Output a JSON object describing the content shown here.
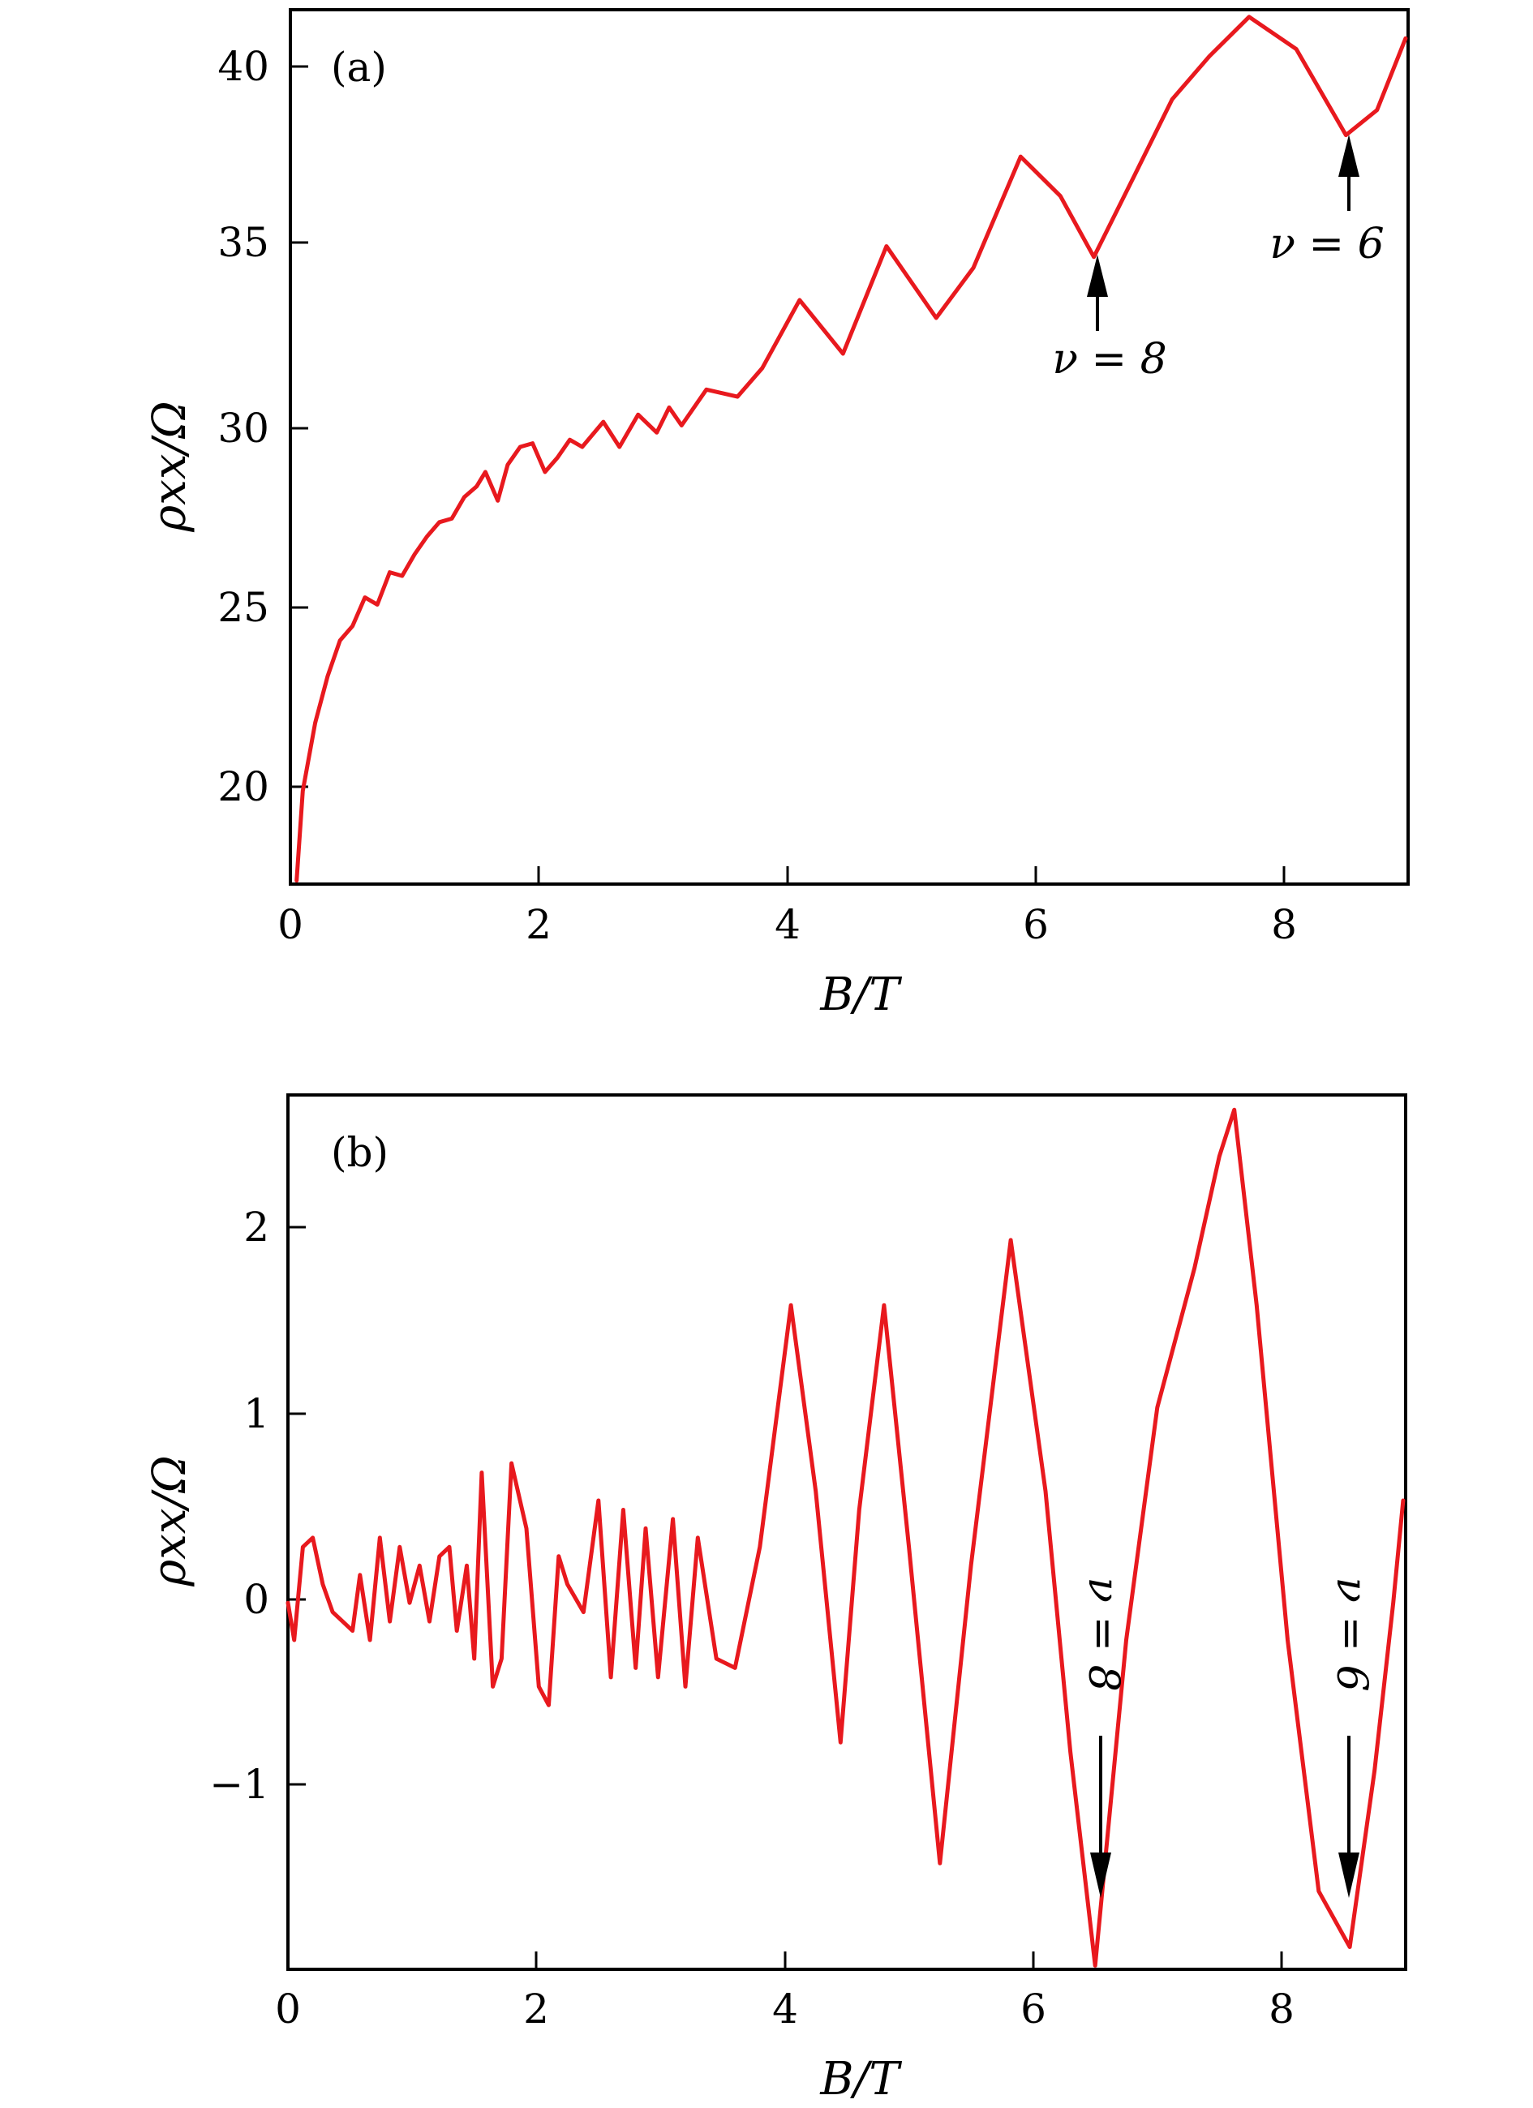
{
  "colors": {
    "curve": "#e8191e",
    "axes": "#000000"
  },
  "chart_data": [
    {
      "type": "line",
      "panel": "(a)",
      "xlabel": "B/T",
      "ylabel": "ρxx/Ω",
      "xlim": [
        0,
        9
      ],
      "ylim": [
        17.2,
        41.6
      ],
      "xticks": [
        0,
        2,
        4,
        6,
        8
      ],
      "yticks": [
        20,
        25,
        30,
        35,
        40
      ],
      "grid": false,
      "series": [
        {
          "x": [
            0.05,
            0.1,
            0.2,
            0.3,
            0.4,
            0.5,
            0.6,
            0.7,
            0.8,
            0.9,
            1.0,
            1.1,
            1.2,
            1.3,
            1.4,
            1.5,
            1.57,
            1.67,
            1.75,
            1.85,
            1.95,
            2.05,
            2.15,
            2.25,
            2.35,
            2.52,
            2.65,
            2.8,
            2.95,
            3.05,
            3.15,
            3.35,
            3.6,
            3.8,
            4.1,
            4.45,
            4.8,
            5.2,
            5.5,
            5.88,
            6.2,
            6.47,
            6.8,
            7.1,
            7.4,
            7.72,
            8.1,
            8.5,
            8.75,
            8.98
          ],
          "y": [
            17.3,
            19.8,
            21.7,
            23.0,
            24.0,
            24.4,
            25.2,
            25.0,
            25.9,
            25.8,
            26.4,
            26.9,
            27.3,
            27.4,
            28.0,
            28.3,
            28.7,
            27.9,
            28.9,
            29.4,
            29.5,
            28.7,
            29.1,
            29.6,
            29.4,
            30.1,
            29.4,
            30.3,
            29.8,
            30.5,
            30.0,
            31.0,
            30.8,
            31.6,
            33.5,
            32.0,
            35.0,
            33.0,
            34.4,
            37.5,
            36.4,
            34.7,
            37.0,
            39.1,
            40.3,
            41.4,
            40.5,
            38.1,
            38.8,
            40.8
          ]
        }
      ],
      "annotations": [
        {
          "text": "ν = 8",
          "x": 6.47,
          "y": 34.7
        },
        {
          "text": "ν = 6",
          "x": 8.5,
          "y": 38.1
        }
      ]
    },
    {
      "type": "line",
      "panel": "(b)",
      "xlabel": "B/T",
      "ylabel": "ρxx/Ω",
      "xlim": [
        0,
        9
      ],
      "ylim": [
        -1.97,
        2.73
      ],
      "xticks": [
        0,
        2,
        4,
        6,
        8
      ],
      "yticks": [
        -1,
        0,
        1,
        2
      ],
      "grid": false,
      "series": [
        {
          "x": [
            0.0,
            0.05,
            0.12,
            0.2,
            0.28,
            0.36,
            0.44,
            0.52,
            0.58,
            0.66,
            0.74,
            0.82,
            0.9,
            0.98,
            1.06,
            1.14,
            1.22,
            1.3,
            1.36,
            1.44,
            1.5,
            1.56,
            1.65,
            1.72,
            1.8,
            1.92,
            2.02,
            2.1,
            2.18,
            2.25,
            2.38,
            2.5,
            2.6,
            2.7,
            2.8,
            2.88,
            2.98,
            3.1,
            3.2,
            3.3,
            3.45,
            3.6,
            3.8,
            4.05,
            4.25,
            4.45,
            4.6,
            4.8,
            5.0,
            5.25,
            5.5,
            5.82,
            6.1,
            6.3,
            6.5,
            6.75,
            7.0,
            7.3,
            7.5,
            7.62,
            7.8,
            8.05,
            8.3,
            8.55,
            8.75,
            8.9,
            8.98
          ],
          "y": [
            0.0,
            -0.2,
            0.3,
            0.35,
            0.1,
            -0.05,
            -0.1,
            -0.15,
            0.15,
            -0.2,
            0.35,
            -0.1,
            0.3,
            0.0,
            0.2,
            -0.1,
            0.25,
            0.3,
            -0.15,
            0.2,
            -0.3,
            0.7,
            -0.45,
            -0.3,
            0.75,
            0.4,
            -0.45,
            -0.55,
            0.25,
            0.1,
            -0.05,
            0.55,
            -0.4,
            0.5,
            -0.35,
            0.4,
            -0.4,
            0.45,
            -0.45,
            0.35,
            -0.3,
            -0.35,
            0.3,
            1.6,
            0.6,
            -0.75,
            0.5,
            1.6,
            0.3,
            -1.4,
            0.2,
            1.95,
            0.6,
            -0.8,
            -1.95,
            -0.2,
            1.05,
            1.8,
            2.4,
            2.65,
            1.6,
            -0.2,
            -1.55,
            -1.85,
            -0.9,
            0.0,
            0.55
          ]
        }
      ],
      "annotations": [
        {
          "text": "ν = 8",
          "x": 6.47,
          "y": -1.6
        },
        {
          "text": "ν = 6",
          "x": 8.5,
          "y": -1.6
        }
      ]
    }
  ]
}
